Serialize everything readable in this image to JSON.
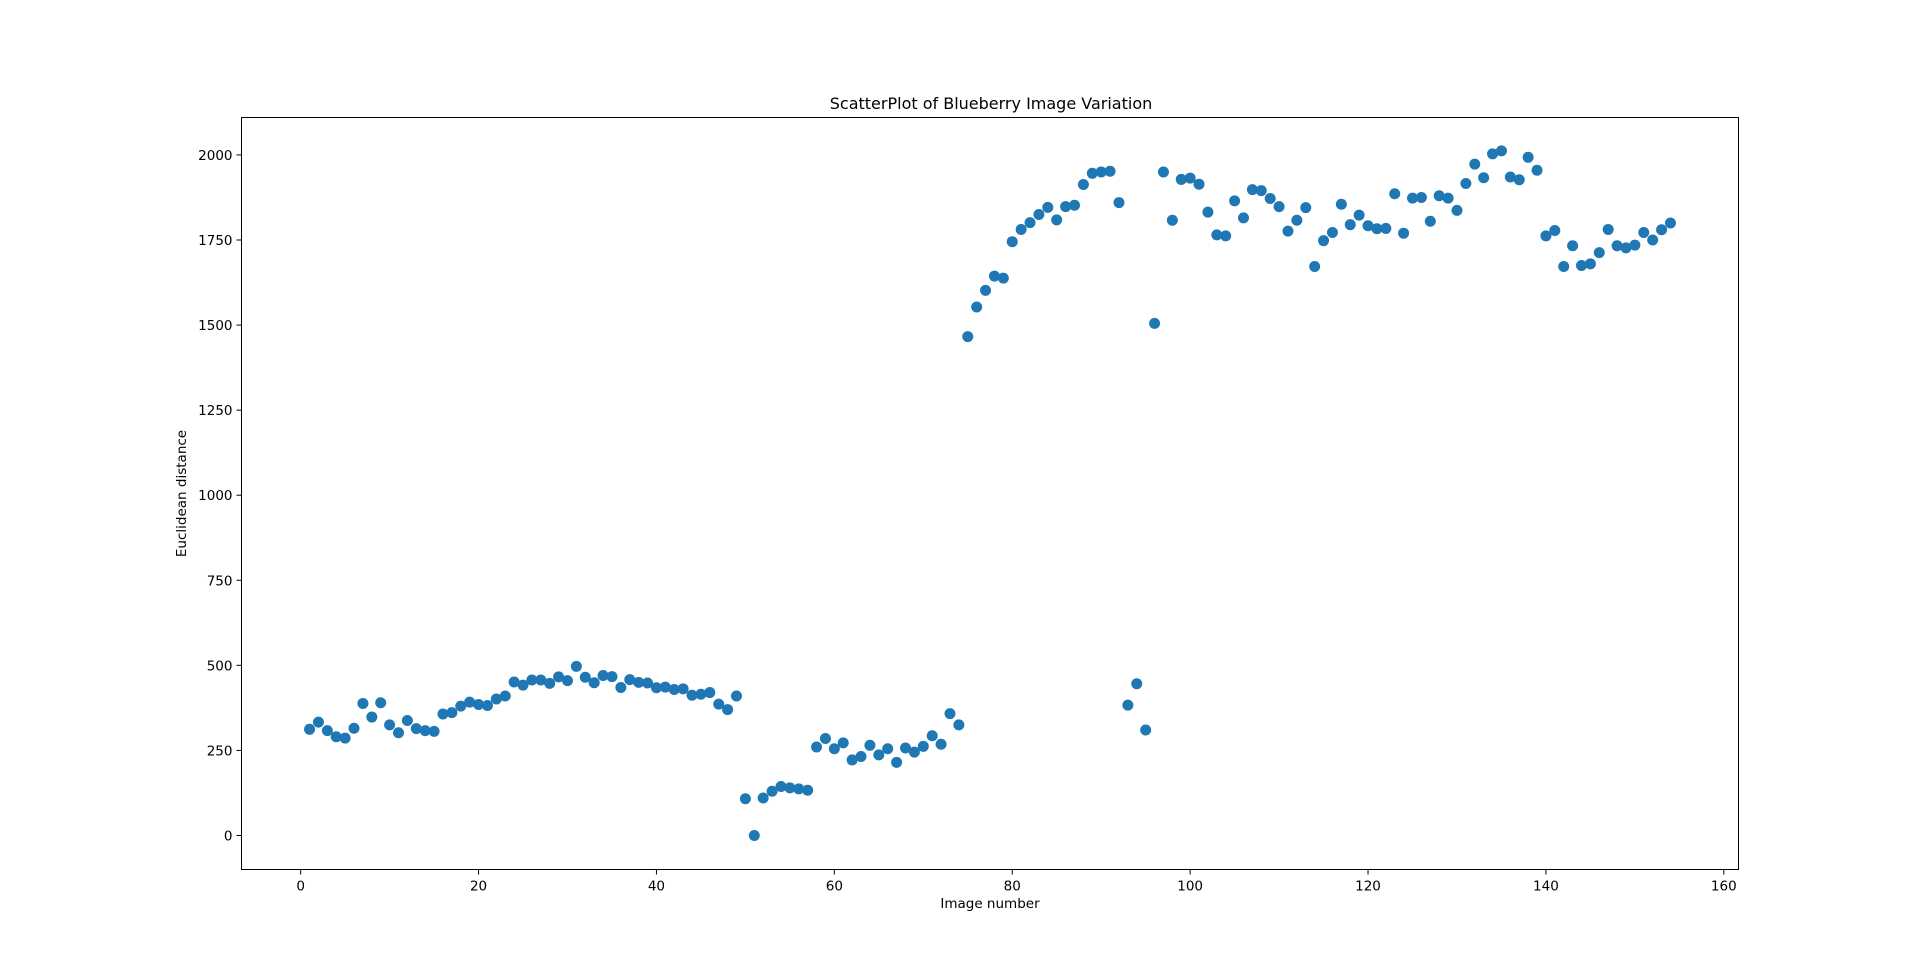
{
  "chart_data": {
    "type": "scatter",
    "title": "ScatterPlot of Blueberry Image Variation",
    "xlabel": "Image number",
    "ylabel": "Euclidean distance",
    "xlim": [
      -6.65,
      161.65
    ],
    "ylim": [
      -100,
      2110
    ],
    "xticks": [
      0,
      20,
      40,
      60,
      80,
      100,
      120,
      140,
      160
    ],
    "yticks": [
      0,
      250,
      500,
      750,
      1000,
      1250,
      1500,
      1750,
      2000
    ],
    "grid": false,
    "marker_color": "#1f77b4",
    "series": [
      {
        "name": "Euclidean distance",
        "x": [
          1,
          2,
          3,
          4,
          5,
          6,
          7,
          8,
          9,
          10,
          11,
          12,
          13,
          14,
          15,
          16,
          17,
          18,
          19,
          20,
          21,
          22,
          23,
          24,
          25,
          26,
          27,
          28,
          29,
          30,
          31,
          32,
          33,
          34,
          35,
          36,
          37,
          38,
          39,
          40,
          41,
          42,
          43,
          44,
          45,
          46,
          47,
          48,
          49,
          50,
          51,
          52,
          53,
          54,
          55,
          56,
          57,
          58,
          59,
          60,
          61,
          62,
          63,
          64,
          65,
          66,
          67,
          68,
          69,
          70,
          71,
          72,
          73,
          74,
          75,
          76,
          77,
          78,
          79,
          80,
          81,
          82,
          83,
          84,
          85,
          86,
          87,
          88,
          89,
          90,
          91,
          92,
          93,
          94,
          95,
          96,
          97,
          98,
          99,
          100,
          101,
          102,
          103,
          104,
          105,
          106,
          107,
          108,
          109,
          110,
          111,
          112,
          113,
          114,
          115,
          116,
          117,
          118,
          119,
          120,
          121,
          122,
          123,
          124,
          125,
          126,
          127,
          128,
          129,
          130,
          131,
          132,
          133,
          134,
          135,
          136,
          137,
          138,
          139,
          140,
          141,
          142,
          143,
          144,
          145,
          146,
          147,
          148,
          149,
          150,
          151,
          152,
          153,
          154
        ],
        "y": [
          312,
          333,
          308,
          290,
          286,
          315,
          388,
          348,
          390,
          325,
          302,
          338,
          314,
          308,
          306,
          357,
          361,
          380,
          392,
          385,
          382,
          401,
          410,
          451,
          442,
          457,
          457,
          447,
          466,
          455,
          497,
          465,
          449,
          470,
          467,
          435,
          458,
          450,
          448,
          434,
          436,
          429,
          431,
          412,
          415,
          420,
          386,
          370,
          410,
          108,
          0,
          110,
          130,
          144,
          140,
          137,
          133,
          260,
          285,
          255,
          272,
          222,
          232,
          265,
          237,
          255,
          215,
          257,
          245,
          262,
          293,
          268,
          358,
          325,
          1466,
          1553,
          1602,
          1644,
          1638,
          1745,
          1781,
          1801,
          1825,
          1846,
          1809,
          1848,
          1852,
          1913,
          1946,
          1950,
          1952,
          1860,
          383,
          446,
          310,
          1505,
          1950,
          1808,
          1928,
          1932,
          1914,
          1832,
          1765,
          1762,
          1865,
          1815,
          1898,
          1895,
          1872,
          1848,
          1776,
          1808,
          1845,
          1672,
          1748,
          1772,
          1855,
          1795,
          1823,
          1792,
          1783,
          1784,
          1886,
          1770,
          1873,
          1875,
          1805,
          1880,
          1873,
          1837,
          1916,
          1973,
          1933,
          2003,
          2012,
          1935,
          1927,
          1993,
          1955,
          1762,
          1778,
          1672,
          1733,
          1675,
          1680,
          1713,
          1781,
          1733,
          1727,
          1735,
          1772,
          1750,
          1780,
          1800
        ]
      }
    ]
  }
}
